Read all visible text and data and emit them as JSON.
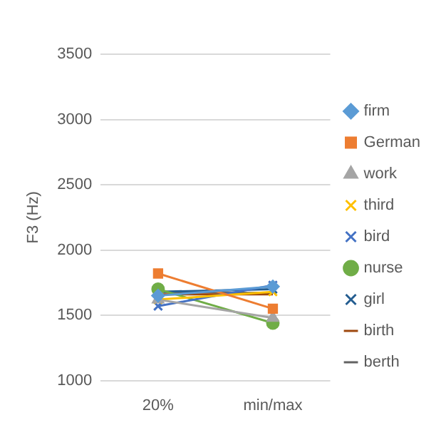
{
  "chart_data": {
    "type": "line",
    "ylabel": "F3 (Hz)",
    "categories": [
      "20%",
      "min/max"
    ],
    "ylim": [
      1000,
      3500
    ],
    "yticks": [
      1000,
      1500,
      2000,
      2500,
      3000,
      3500
    ],
    "grid": "y",
    "legend": "right",
    "series": [
      {
        "name": "firm",
        "color": "#5b9bd5",
        "values": [
          1650,
          1720
        ],
        "marker": "diamond"
      },
      {
        "name": "German",
        "color": "#ed7d31",
        "values": [
          1820,
          1550
        ],
        "marker": "square"
      },
      {
        "name": "work",
        "color": "#a5a5a5",
        "values": [
          1620,
          1480
        ],
        "marker": "triangle"
      },
      {
        "name": "third",
        "color": "#ffc000",
        "values": [
          1620,
          1680
        ],
        "marker": "cross"
      },
      {
        "name": "bird",
        "color": "#4472c4",
        "values": [
          1570,
          1730
        ],
        "marker": "cross"
      },
      {
        "name": "nurse",
        "color": "#70ad47",
        "values": [
          1700,
          1440
        ],
        "marker": "circle"
      },
      {
        "name": "girl",
        "color": "#255e91",
        "values": [
          1680,
          1700
        ],
        "marker": "cross"
      },
      {
        "name": "birth",
        "color": "#9e480e",
        "values": [
          1660,
          1660
        ],
        "marker": "none"
      },
      {
        "name": "berth",
        "color": "#636363",
        "values": [
          1680,
          1670
        ],
        "marker": "none"
      }
    ]
  }
}
